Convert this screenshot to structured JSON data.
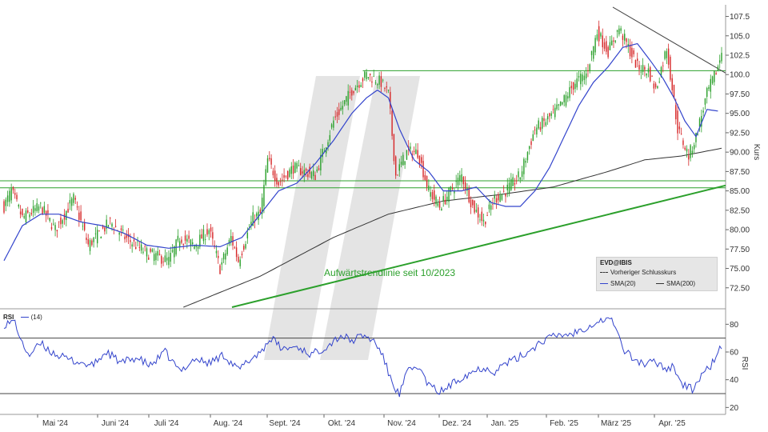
{
  "chart_data": [
    {
      "type": "candlestick",
      "symbol_label": "EVD@IBIS",
      "ylabel": "Kurs",
      "ylim": [
        70,
        109
      ],
      "y_ticks": [
        "72.50",
        "75.00",
        "77.50",
        "80.00",
        "82.50",
        "85.00",
        "87.50",
        "90.00",
        "92.50",
        "95.00",
        "97.50",
        "100.0",
        "102.5",
        "105.0",
        "107.5"
      ],
      "x_tick_labels": [
        "Mai '24",
        "Juni '24",
        "Juli '24",
        "Aug. '24",
        "Sept. '24",
        "Okt. '24",
        "Nov. '24",
        "Dez. '24",
        "Jan. '25",
        "Feb. '25",
        "März '25",
        "Apr. '25"
      ],
      "legend": {
        "prev_close": "Vorheriger Schlusskurs",
        "sma20": "SMA(20)",
        "sma200": "SMA(200)"
      },
      "annotation": "Aufwärtstrendlinie seit 10/2023",
      "colors": {
        "up": "#2ca02c",
        "down": "#d62728",
        "sma20": "#3344cc",
        "sma200": "#333333",
        "trend": "#2ca02c",
        "hline": "#2ca02c",
        "resistance": "#444444"
      },
      "horizontal_lines": [
        100.5,
        86.3,
        85.4
      ],
      "trendline_support": [
        [
          0.0,
          70.0
        ],
        [
          1.0,
          85.7
        ]
      ],
      "trendline_resistance": [
        [
          0.0,
          108.7
        ],
        [
          1.0,
          100.2
        ]
      ],
      "price_keypoints": [
        [
          0,
          83
        ],
        [
          4,
          85
        ],
        [
          10,
          81.5
        ],
        [
          20,
          83
        ],
        [
          28,
          80
        ],
        [
          38,
          84
        ],
        [
          46,
          78
        ],
        [
          58,
          81
        ],
        [
          66,
          79
        ],
        [
          78,
          77
        ],
        [
          90,
          76
        ],
        [
          96,
          79
        ],
        [
          104,
          78
        ],
        [
          112,
          80
        ],
        [
          118,
          75
        ],
        [
          124,
          79
        ],
        [
          128,
          76
        ],
        [
          136,
          81.5
        ],
        [
          140,
          82
        ],
        [
          144,
          89
        ],
        [
          150,
          86
        ],
        [
          158,
          88
        ],
        [
          170,
          87
        ],
        [
          180,
          94
        ],
        [
          190,
          98
        ],
        [
          198,
          100
        ],
        [
          206,
          99
        ],
        [
          210,
          97.5
        ],
        [
          214,
          87
        ],
        [
          220,
          90
        ],
        [
          226,
          90
        ],
        [
          232,
          85
        ],
        [
          238,
          83
        ],
        [
          244,
          85
        ],
        [
          250,
          87
        ],
        [
          256,
          83
        ],
        [
          262,
          81
        ],
        [
          268,
          84
        ],
        [
          274,
          85
        ],
        [
          282,
          87
        ],
        [
          290,
          93
        ],
        [
          296,
          94
        ],
        [
          304,
          96
        ],
        [
          312,
          99
        ],
        [
          318,
          100
        ],
        [
          324,
          105.5
        ],
        [
          330,
          103
        ],
        [
          336,
          106
        ],
        [
          340,
          104
        ],
        [
          346,
          101
        ],
        [
          352,
          100.5
        ],
        [
          356,
          98
        ],
        [
          362,
          103.5
        ],
        [
          368,
          93
        ],
        [
          374,
          89.5
        ],
        [
          378,
          92
        ],
        [
          384,
          97.5
        ],
        [
          390,
          101
        ],
        [
          392,
          103
        ]
      ],
      "sma20_keypoints": [
        [
          0,
          76
        ],
        [
          10,
          80.5
        ],
        [
          20,
          82
        ],
        [
          30,
          82
        ],
        [
          42,
          81
        ],
        [
          54,
          80.5
        ],
        [
          66,
          79.5
        ],
        [
          78,
          78
        ],
        [
          90,
          77.6
        ],
        [
          104,
          78
        ],
        [
          118,
          77.8
        ],
        [
          130,
          79
        ],
        [
          140,
          82
        ],
        [
          150,
          85
        ],
        [
          160,
          86
        ],
        [
          170,
          88.5
        ],
        [
          180,
          91.5
        ],
        [
          190,
          95
        ],
        [
          198,
          97
        ],
        [
          204,
          98
        ],
        [
          210,
          97
        ],
        [
          216,
          93
        ],
        [
          224,
          89
        ],
        [
          232,
          87.5
        ],
        [
          240,
          85
        ],
        [
          250,
          85
        ],
        [
          258,
          85.5
        ],
        [
          266,
          83.5
        ],
        [
          274,
          83
        ],
        [
          282,
          83
        ],
        [
          290,
          85
        ],
        [
          298,
          88
        ],
        [
          306,
          92
        ],
        [
          314,
          96
        ],
        [
          322,
          99
        ],
        [
          330,
          101
        ],
        [
          338,
          103.5
        ],
        [
          346,
          104
        ],
        [
          354,
          101.5
        ],
        [
          360,
          99.5
        ],
        [
          366,
          97
        ],
        [
          372,
          94
        ],
        [
          378,
          92
        ],
        [
          384,
          95.5
        ],
        [
          390,
          95.3
        ]
      ],
      "sma200_keypoints": [
        [
          98,
          70
        ],
        [
          140,
          74
        ],
        [
          180,
          79
        ],
        [
          210,
          82
        ],
        [
          240,
          83.7
        ],
        [
          270,
          84.5
        ],
        [
          300,
          85.5
        ],
        [
          330,
          87.5
        ],
        [
          350,
          89
        ],
        [
          370,
          89.5
        ],
        [
          392,
          90.5
        ]
      ],
      "n_bars": 393
    },
    {
      "type": "line",
      "title": "RSI",
      "series_label": "(14)",
      "ylabel": "RSI",
      "ylim": [
        15,
        90
      ],
      "y_ticks": [
        "20",
        "40",
        "60",
        "80"
      ],
      "levels": [
        30,
        70
      ],
      "rsi_keypoints": [
        [
          0,
          80
        ],
        [
          6,
          82
        ],
        [
          10,
          65
        ],
        [
          14,
          58
        ],
        [
          20,
          66
        ],
        [
          26,
          60
        ],
        [
          34,
          55
        ],
        [
          40,
          53
        ],
        [
          48,
          50
        ],
        [
          56,
          60
        ],
        [
          64,
          52
        ],
        [
          72,
          56
        ],
        [
          80,
          50
        ],
        [
          88,
          60
        ],
        [
          96,
          46
        ],
        [
          104,
          55
        ],
        [
          112,
          52
        ],
        [
          120,
          58
        ],
        [
          128,
          47
        ],
        [
          134,
          54
        ],
        [
          140,
          60
        ],
        [
          146,
          70
        ],
        [
          152,
          62
        ],
        [
          160,
          64
        ],
        [
          168,
          58
        ],
        [
          176,
          64
        ],
        [
          184,
          72
        ],
        [
          190,
          68
        ],
        [
          196,
          72
        ],
        [
          202,
          68
        ],
        [
          206,
          60
        ],
        [
          212,
          38
        ],
        [
          216,
          29
        ],
        [
          220,
          45
        ],
        [
          226,
          50
        ],
        [
          232,
          36
        ],
        [
          238,
          31
        ],
        [
          244,
          36
        ],
        [
          250,
          42
        ],
        [
          256,
          46
        ],
        [
          262,
          49
        ],
        [
          268,
          46
        ],
        [
          274,
          52
        ],
        [
          280,
          55
        ],
        [
          286,
          60
        ],
        [
          294,
          68
        ],
        [
          302,
          72
        ],
        [
          310,
          73
        ],
        [
          318,
          78
        ],
        [
          324,
          82
        ],
        [
          330,
          84
        ],
        [
          334,
          80
        ],
        [
          338,
          62
        ],
        [
          344,
          55
        ],
        [
          350,
          51
        ],
        [
          356,
          53
        ],
        [
          362,
          48
        ],
        [
          366,
          50
        ],
        [
          370,
          37
        ],
        [
          376,
          33
        ],
        [
          380,
          41
        ],
        [
          386,
          50
        ],
        [
          392,
          64
        ]
      ]
    }
  ]
}
